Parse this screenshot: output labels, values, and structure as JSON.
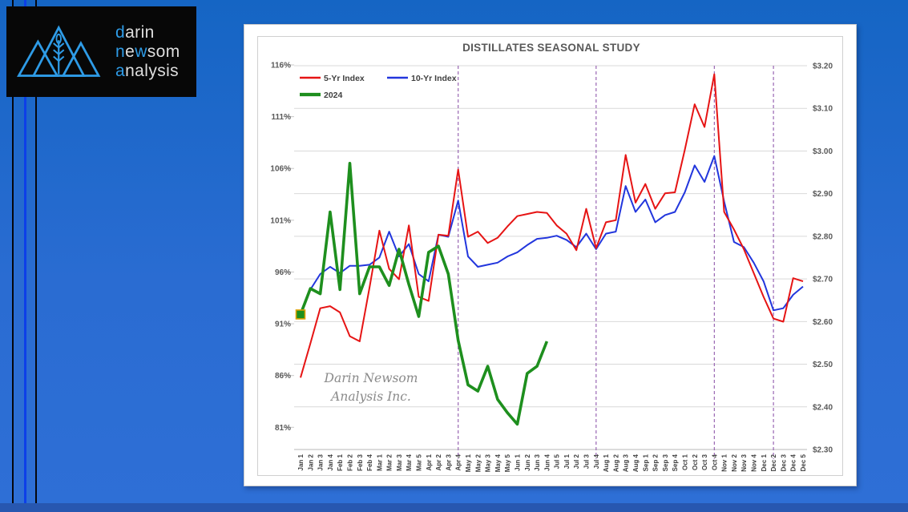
{
  "logo": {
    "words": [
      {
        "segments": [
          {
            "t": "d",
            "accent": true
          },
          {
            "t": "arin",
            "accent": false
          }
        ]
      },
      {
        "segments": [
          {
            "t": "n",
            "accent": true
          },
          {
            "t": "e",
            "accent": false
          },
          {
            "t": "w",
            "accent": true
          },
          {
            "t": "som",
            "accent": false
          }
        ]
      },
      {
        "segments": [
          {
            "t": "a",
            "accent": true
          },
          {
            "t": "nalysis",
            "accent": false
          }
        ]
      }
    ],
    "accent_color": "#2e9be6",
    "text_color": "#dedede"
  },
  "background": {
    "gradient_top": "#1565c4",
    "gradient_bottom": "#2e6fd6",
    "bottom_strip": "#2757b0",
    "stripe_black": "#05070d",
    "stripe_blue": "#0d3fe8"
  },
  "chart_data": {
    "type": "line",
    "title": "DISTILLATES SEASONAL STUDY",
    "watermark": [
      "Darin Newsom",
      "Analysis Inc."
    ],
    "grid": true,
    "legend_position": "top-left",
    "categories": [
      "Jan 1",
      "Jan 2",
      "Jan 3",
      "Jan 4",
      "Feb 1",
      "Feb 2",
      "Feb 3",
      "Feb 4",
      "Mar 1",
      "Mar 2",
      "Mar 3",
      "Mar 4",
      "Mar 5",
      "Apr 1",
      "Apr 2",
      "Apr 3",
      "Apr 4",
      "May 1",
      "May 2",
      "May 3",
      "May 4",
      "May 5",
      "Jun 1",
      "Jun 2",
      "Jun 3",
      "Jun 4",
      "Jul 5",
      "Jul 1",
      "Jul 2",
      "Jul 3",
      "Jul 4",
      "Aug 1",
      "Aug 2",
      "Aug 3",
      "Aug 4",
      "Sep 1",
      "Sep 2",
      "Sep 3",
      "Sep 4",
      "Oct 1",
      "Oct 2",
      "Oct 3",
      "Oct 4",
      "Nov 1",
      "Nov 2",
      "Nov 3",
      "Nov 4",
      "Dec 1",
      "Dec 2",
      "Dec 3",
      "Dec 4",
      "Dec 5"
    ],
    "left_axis": {
      "ticks": [
        "116%",
        "111%",
        "106%",
        "101%",
        "96%",
        "91%",
        "86%",
        "81%"
      ],
      "min": 81,
      "max": 116,
      "unit": "%"
    },
    "right_axis": {
      "ticks": [
        "$3.20",
        "$3.10",
        "$3.00",
        "$2.90",
        "$2.80",
        "$2.70",
        "$2.60",
        "$2.50",
        "$2.40",
        "$2.30"
      ],
      "min": 2.3,
      "max": 3.2,
      "unit": "$"
    },
    "event_lines": {
      "color": "#9966b3",
      "week_indices": [
        16,
        30,
        42,
        48
      ],
      "labels": [
        "Apr 4",
        "Jul 4",
        "Oct 4",
        "Dec 2"
      ]
    },
    "series": [
      {
        "name": "10-Yr Index",
        "color": "#2236dd",
        "width": 2,
        "values": [
          92.1,
          94.3,
          95.8,
          96.5,
          95.9,
          96.6,
          96.6,
          96.7,
          97.4,
          99.9,
          97.5,
          98.7,
          95.8,
          95.1,
          99.6,
          99.4,
          102.9,
          97.5,
          96.5,
          96.7,
          96.9,
          97.5,
          97.9,
          98.6,
          99.2,
          99.3,
          99.5,
          99.1,
          98.4,
          99.7,
          98.2,
          99.7,
          99.9,
          104.3,
          101.8,
          103.0,
          100.8,
          101.5,
          101.8,
          103.7,
          106.3,
          104.7,
          107.2,
          102.8,
          98.9,
          98.4,
          96.9,
          95.1,
          92.3,
          92.5,
          93.8,
          94.6
        ]
      },
      {
        "name": "5-Yr Index",
        "color": "#e61414",
        "width": 2,
        "values": [
          85.8,
          89.1,
          92.5,
          92.7,
          92.1,
          89.8,
          89.3,
          94.5,
          100.0,
          96.3,
          95.3,
          100.5,
          93.6,
          93.2,
          99.6,
          99.5,
          105.9,
          99.4,
          99.9,
          98.8,
          99.3,
          100.4,
          101.4,
          101.6,
          101.8,
          101.7,
          100.5,
          99.7,
          98.1,
          102.1,
          98.3,
          100.8,
          101.0,
          107.3,
          102.7,
          104.5,
          102.1,
          103.6,
          103.7,
          107.8,
          112.2,
          110.0,
          115.1,
          101.8,
          100.1,
          98.2,
          95.9,
          93.6,
          91.5,
          91.2,
          95.4,
          95.1
        ]
      },
      {
        "name": "2024",
        "color": "#1e8f1e",
        "width": 3.6,
        "values": [
          91.9,
          94.4,
          93.9,
          101.8,
          94.3,
          106.5,
          93.9,
          96.5,
          96.5,
          94.7,
          98.2,
          94.8,
          91.7,
          97.9,
          98.5,
          95.8,
          89.4,
          85.1,
          84.5,
          86.9,
          83.7,
          82.4,
          81.3,
          86.2,
          86.9,
          89.3,
          null,
          null,
          null,
          null,
          null,
          null,
          null,
          null,
          null,
          null,
          null,
          null,
          null,
          null,
          null,
          null,
          null,
          null,
          null,
          null,
          null,
          null,
          null,
          null,
          null,
          null
        ]
      }
    ],
    "start_marker": {
      "series": "2024",
      "week": "Jan 1",
      "value": 91.9,
      "fill": "#1e8f1e",
      "stroke": "#e0a000"
    },
    "legend": [
      {
        "label": "5-Yr Index",
        "color": "#e61414"
      },
      {
        "label": "10-Yr Index",
        "color": "#2236dd"
      },
      {
        "label": "2024",
        "color": "#1e8f1e"
      }
    ]
  }
}
